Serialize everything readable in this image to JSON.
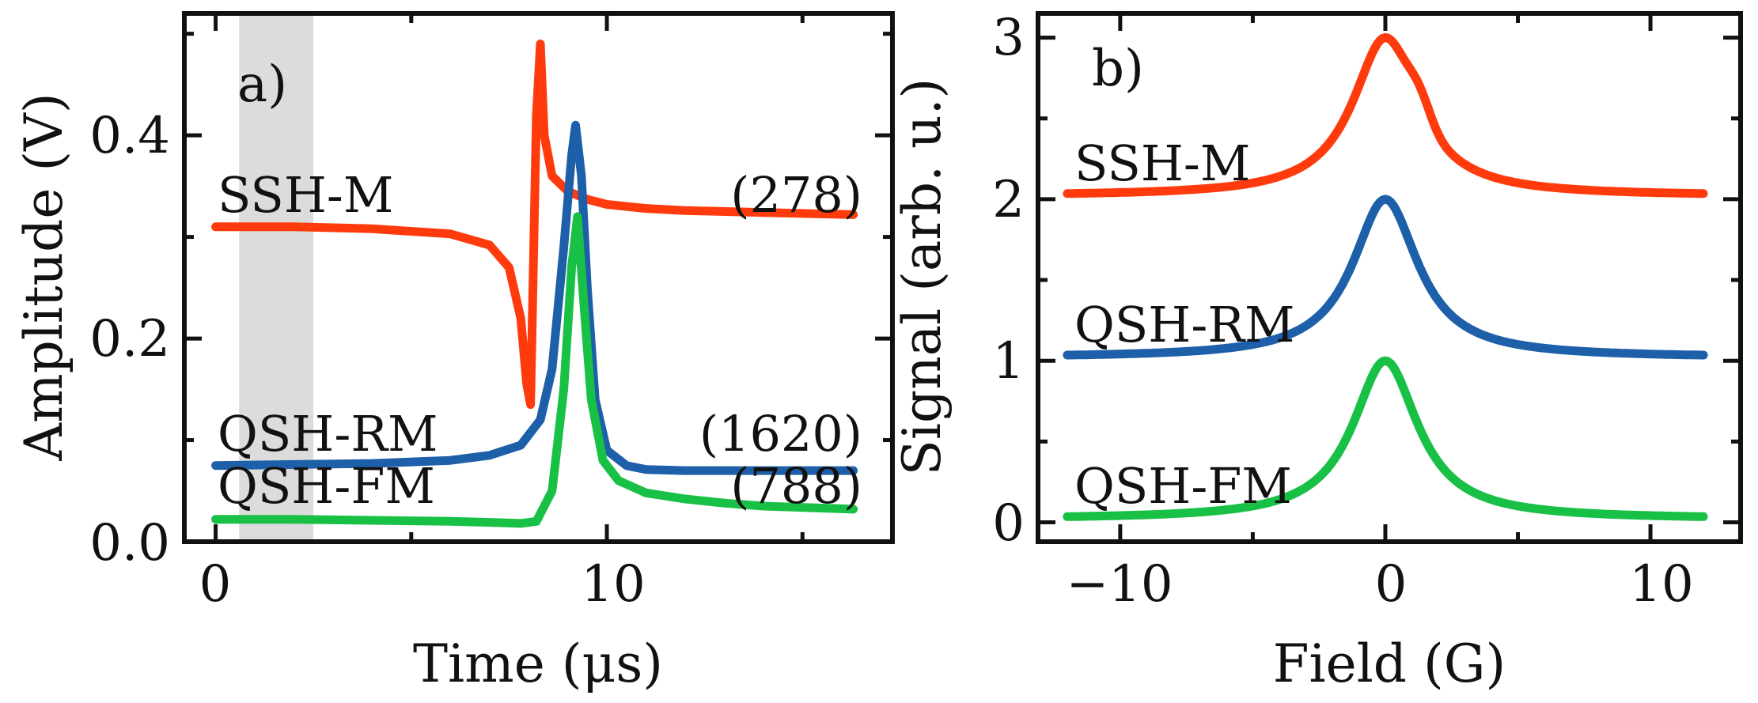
{
  "colors": {
    "ssh_m": "#ff3b0e",
    "qsh_rm": "#1d5fa8",
    "qsh_fm": "#19c046",
    "shade": "#dcdcdc"
  },
  "chart_data": [
    {
      "type": "line",
      "panel_label": "a)",
      "xlabel": "Time (μs)",
      "ylabel": "Amplitude (V)",
      "xlim": [
        -0.8,
        17.3
      ],
      "ylim": [
        0.0,
        0.52
      ],
      "xticks": [
        0,
        10
      ],
      "yticks": [
        0.0,
        0.2,
        0.4
      ],
      "ytick_labels": [
        "0.0",
        "0.2",
        "0.4"
      ],
      "xtick_labels": [
        "0",
        "10"
      ],
      "shaded_region": [
        0.6,
        2.5
      ],
      "series": [
        {
          "name": "SSH-M",
          "count": "(278)",
          "color_key": "ssh_m",
          "x": [
            0,
            2,
            4,
            6,
            7,
            7.5,
            7.8,
            7.95,
            8.05,
            8.2,
            8.3,
            8.4,
            8.6,
            9.0,
            9.5,
            10,
            11,
            12,
            14,
            16.3
          ],
          "y": [
            0.31,
            0.31,
            0.308,
            0.303,
            0.292,
            0.27,
            0.22,
            0.155,
            0.135,
            0.42,
            0.49,
            0.4,
            0.36,
            0.345,
            0.337,
            0.332,
            0.328,
            0.326,
            0.324,
            0.322
          ]
        },
        {
          "name": "QSH-RM",
          "count": "(1620)",
          "color_key": "qsh_rm",
          "x": [
            0,
            2,
            4,
            6,
            7,
            7.8,
            8.3,
            8.6,
            8.9,
            9.1,
            9.2,
            9.35,
            9.5,
            9.7,
            10,
            10.5,
            11,
            12,
            14,
            16.3
          ],
          "y": [
            0.075,
            0.076,
            0.077,
            0.08,
            0.085,
            0.095,
            0.12,
            0.17,
            0.29,
            0.38,
            0.41,
            0.36,
            0.25,
            0.14,
            0.09,
            0.075,
            0.071,
            0.07,
            0.07,
            0.07
          ]
        },
        {
          "name": "QSH-FM",
          "count": "(788)",
          "color_key": "qsh_fm",
          "x": [
            0,
            2,
            4,
            6,
            7,
            7.8,
            8.2,
            8.6,
            8.9,
            9.1,
            9.25,
            9.4,
            9.6,
            9.9,
            10.3,
            11,
            12,
            13,
            14,
            16.3
          ],
          "y": [
            0.022,
            0.022,
            0.021,
            0.02,
            0.019,
            0.018,
            0.02,
            0.05,
            0.15,
            0.27,
            0.32,
            0.24,
            0.14,
            0.08,
            0.06,
            0.048,
            0.042,
            0.038,
            0.035,
            0.032
          ]
        }
      ]
    },
    {
      "type": "line",
      "panel_label": "b)",
      "xlabel": "Field (G)",
      "ylabel": "Signal (arb. u.)",
      "xlim": [
        -13.1,
        13.4
      ],
      "ylim": [
        -0.12,
        3.15
      ],
      "xticks": [
        -10,
        0,
        10
      ],
      "xtick_labels": [
        "−10",
        "0",
        "10"
      ],
      "yticks": [
        0,
        1,
        2,
        3
      ],
      "ytick_labels": [
        "0",
        "1",
        "2",
        "3"
      ],
      "series": [
        {
          "name": "SSH-M",
          "color_key": "ssh_m",
          "offset": 2,
          "shoulder": true
        },
        {
          "name": "QSH-RM",
          "color_key": "qsh_rm",
          "offset": 1,
          "shoulder": false
        },
        {
          "name": "QSH-FM",
          "color_key": "qsh_fm",
          "offset": 0,
          "shoulder": false
        }
      ],
      "x_range": [
        -12,
        12
      ],
      "peak_width_G": 1.5,
      "baseline": 0.02
    }
  ]
}
